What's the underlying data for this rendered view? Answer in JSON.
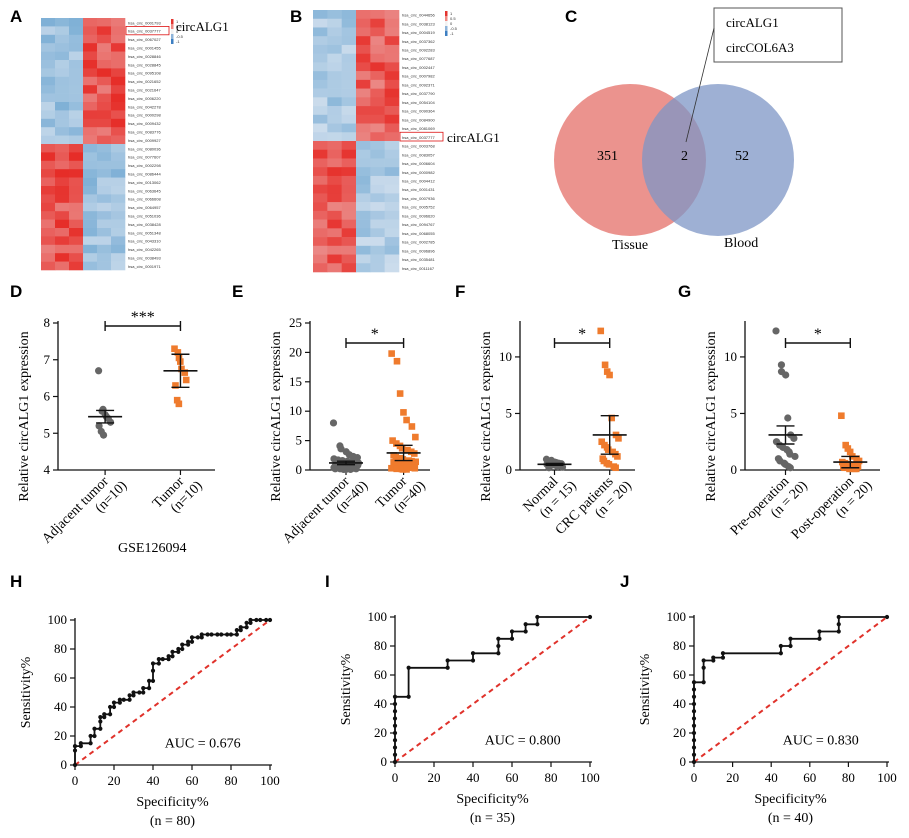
{
  "panel_letters": [
    "A",
    "B",
    "C",
    "D",
    "E",
    "F",
    "G",
    "H",
    "I",
    "J"
  ],
  "heatmap_A": {
    "rows": [
      "hsa_circ_0001793",
      "hsa_circ_0037777",
      "hsa_circ_0067027",
      "hsa_circ_0001455",
      "hsa_circ_0028846",
      "hsa_circ_0028845",
      "hsa_circ_0095108",
      "hsa_circ_0021652",
      "hsa_circ_0021647",
      "hsa_circ_0006220",
      "hsa_circ_0042278",
      "hsa_circ_0000298",
      "hsa_circ_0009432",
      "hsa_circ_0083776",
      "hsa_circ_0009927",
      "hsa_circ_0080036",
      "hsa_circ_0077607",
      "hsa_circ_0002298",
      "hsa_circ_0086444",
      "hsa_circ_0013062",
      "hsa_circ_0063645",
      "hsa_circ_0066608",
      "hsa_circ_0064957",
      "hsa_circ_0051036",
      "hsa_circ_0038428",
      "hsa_circ_0051348",
      "hsa_circ_0043310",
      "hsa_circ_0042265",
      "hsa_circ_0038493",
      "hsa_circ_0001971"
    ],
    "legend": [
      "1",
      "0.5",
      "0",
      "-0.5",
      "-1"
    ],
    "highlight": "circALG1",
    "highlight_row": 1
  },
  "heatmap_B": {
    "rows": [
      "hsa_circ_0044656",
      "hsa_circ_0038123",
      "hsa_circ_0004519",
      "hsa_circ_0037362",
      "hsa_circ_0092283",
      "hsa_circ_0077687",
      "hsa_circ_0002447",
      "hsa_circ_0007982",
      "hsa_circ_0092371",
      "hsa_circ_0037790",
      "hsa_circ_0054104",
      "hsa_circ_0090364",
      "hsa_circ_0084900",
      "hsa_circ_0081069",
      "hsa_circ_0037777",
      "hsa_circ_0003768",
      "hsa_circ_0083057",
      "hsa_circ_0006604",
      "hsa_circ_0000982",
      "hsa_circ_0004412",
      "hsa_circ_0001431",
      "hsa_circ_0007936",
      "hsa_circ_0005752",
      "hsa_circ_0096620",
      "hsa_circ_0094767",
      "hsa_circ_0068055",
      "hsa_circ_0002785",
      "hsa_circ_0096896",
      "hsa_circ_0035481",
      "hsa_circ_0011167"
    ],
    "legend": [
      "1",
      "0.5",
      "0",
      "-0.5",
      "-1"
    ],
    "highlight": "circALG1",
    "highlight_row": 14
  },
  "venn": {
    "left_label": "Tissue",
    "right_label": "Blood",
    "left_only": "351",
    "overlap": "2",
    "right_only": "52",
    "callout": [
      "circALG1",
      "circCOL6A3"
    ]
  },
  "chart_data": [
    {
      "panel": "D",
      "type": "scatter",
      "ylabel": "Relative circALG1 expression",
      "categories": [
        "Adjacent tumor\n(n=10)",
        "Tumor\n(n=10)"
      ],
      "ylim": [
        4,
        8
      ],
      "yticks": [
        4,
        5,
        6,
        7,
        8
      ],
      "dataset": "GSE126094",
      "series": [
        {
          "values": [
            6.7,
            5.65,
            5.6,
            5.5,
            5.45,
            5.4,
            5.3,
            5.2,
            5.05,
            4.95
          ],
          "mean": 5.45,
          "sem": 0.17,
          "color": "#666666",
          "marker": "circle"
        },
        {
          "values": [
            7.3,
            7.2,
            7.05,
            6.95,
            6.75,
            6.65,
            6.45,
            6.3,
            5.9,
            5.8
          ],
          "mean": 6.7,
          "sem": 0.45,
          "color": "#ef7b2d",
          "marker": "square"
        }
      ],
      "significance": "***"
    },
    {
      "panel": "E",
      "type": "scatter",
      "ylabel": "Relative circALG1 expression",
      "categories": [
        "Adjacent tumor\n(n=40)",
        "Tumor\n(n=40)"
      ],
      "ylim": [
        0,
        25
      ],
      "yticks": [
        0,
        5,
        10,
        15,
        20,
        25
      ],
      "series": [
        {
          "values": [
            8.0,
            4.1,
            3.6,
            3.1,
            2.6,
            2.3,
            2.1,
            1.9,
            1.7,
            1.6,
            1.5,
            1.4,
            1.3,
            1.2,
            1.1,
            1.0,
            1.0,
            0.9,
            0.9,
            0.8,
            0.8,
            0.7,
            0.7,
            0.6,
            0.6,
            0.5,
            0.5,
            0.5,
            0.4,
            0.4,
            0.4,
            0.3,
            0.3,
            0.3,
            0.2,
            0.2,
            0.2,
            0.1,
            0.1,
            0.1
          ],
          "mean": 1.2,
          "sem": 0.3,
          "color": "#666666",
          "marker": "circle"
        },
        {
          "values": [
            19.8,
            18.5,
            13.0,
            9.8,
            8.5,
            7.4,
            5.6,
            5.0,
            4.5,
            4.1,
            3.7,
            3.4,
            3.1,
            2.8,
            2.5,
            2.2,
            2.0,
            1.8,
            1.6,
            1.5,
            1.4,
            1.3,
            1.2,
            1.1,
            1.0,
            0.9,
            0.8,
            0.7,
            0.6,
            0.6,
            0.5,
            0.5,
            0.4,
            0.4,
            0.3,
            0.3,
            0.2,
            0.2,
            0.1,
            0.1
          ],
          "mean": 2.9,
          "sem": 1.3,
          "color": "#ef7b2d",
          "marker": "square"
        }
      ],
      "significance": "*"
    },
    {
      "panel": "F",
      "type": "scatter",
      "ylabel": "Relative circALG1 expression",
      "categories": [
        "Normal\n(n = 15)",
        "CRC patients\n(n = 20)"
      ],
      "ylim": [
        0,
        13
      ],
      "yticks": [
        0,
        5,
        10
      ],
      "series": [
        {
          "values": [
            0.95,
            0.85,
            0.8,
            0.7,
            0.65,
            0.6,
            0.55,
            0.5,
            0.5,
            0.45,
            0.4,
            0.35,
            0.3,
            0.25,
            0.2
          ],
          "mean": 0.5,
          "sem": 0.08,
          "color": "#666666",
          "marker": "circle"
        },
        {
          "values": [
            12.3,
            9.3,
            8.7,
            8.4,
            4.6,
            3.1,
            2.8,
            2.5,
            2.2,
            2.0,
            1.8,
            1.6,
            1.4,
            1.2,
            1.0,
            0.8,
            0.6,
            0.5,
            0.3,
            0.2
          ],
          "mean": 3.1,
          "sem": 1.7,
          "color": "#ef7b2d",
          "marker": "square"
        }
      ],
      "significance": "*"
    },
    {
      "panel": "G",
      "type": "scatter",
      "ylabel": "Relative circALG1 expression",
      "categories": [
        "Pre-operation\n(n = 20)",
        "Post-operation\n(n = 20)"
      ],
      "ylim": [
        0,
        13
      ],
      "yticks": [
        0,
        5,
        10
      ],
      "series": [
        {
          "values": [
            12.3,
            9.3,
            8.7,
            8.4,
            4.6,
            3.1,
            2.8,
            2.5,
            2.2,
            2.0,
            1.8,
            1.6,
            1.4,
            1.2,
            1.0,
            0.8,
            0.6,
            0.5,
            0.3,
            0.2
          ],
          "mean": 3.1,
          "sem": 0.8,
          "color": "#666666",
          "marker": "circle"
        },
        {
          "values": [
            4.8,
            2.2,
            1.9,
            1.6,
            1.2,
            1.0,
            0.8,
            0.7,
            0.6,
            0.5,
            0.5,
            0.4,
            0.4,
            0.3,
            0.3,
            0.2,
            0.2,
            0.1,
            0.1,
            0.1
          ],
          "mean": 0.7,
          "sem": 0.5,
          "color": "#ef7b2d",
          "marker": "square"
        }
      ],
      "significance": "*"
    },
    {
      "panel": "H",
      "type": "line",
      "xlabel": "Specificity%",
      "xlabel_sub": "(n = 80)",
      "ylabel": "Sensitivity%",
      "xlim": [
        0,
        100
      ],
      "ylim": [
        0,
        100
      ],
      "ticks": [
        0,
        20,
        40,
        60,
        80,
        100
      ],
      "auc": "AUC = 0.676",
      "roc": [
        [
          0,
          0
        ],
        [
          0,
          10
        ],
        [
          0,
          13
        ],
        [
          3,
          13
        ],
        [
          3,
          15
        ],
        [
          8,
          15
        ],
        [
          8,
          20
        ],
        [
          10,
          20
        ],
        [
          10,
          25
        ],
        [
          13,
          25
        ],
        [
          13,
          30
        ],
        [
          13,
          33
        ],
        [
          15,
          33
        ],
        [
          15,
          35
        ],
        [
          18,
          35
        ],
        [
          18,
          40
        ],
        [
          20,
          40
        ],
        [
          20,
          43
        ],
        [
          23,
          43
        ],
        [
          23,
          45
        ],
        [
          25,
          45
        ],
        [
          28,
          45
        ],
        [
          28,
          48
        ],
        [
          30,
          48
        ],
        [
          30,
          50
        ],
        [
          33,
          50
        ],
        [
          35,
          50
        ],
        [
          35,
          53
        ],
        [
          38,
          53
        ],
        [
          38,
          58
        ],
        [
          40,
          58
        ],
        [
          40,
          65
        ],
        [
          40,
          70
        ],
        [
          43,
          70
        ],
        [
          43,
          73
        ],
        [
          45,
          73
        ],
        [
          48,
          73
        ],
        [
          48,
          75
        ],
        [
          50,
          75
        ],
        [
          50,
          78
        ],
        [
          53,
          78
        ],
        [
          53,
          80
        ],
        [
          55,
          80
        ],
        [
          55,
          83
        ],
        [
          58,
          83
        ],
        [
          58,
          85
        ],
        [
          60,
          85
        ],
        [
          60,
          88
        ],
        [
          63,
          88
        ],
        [
          65,
          88
        ],
        [
          65,
          90
        ],
        [
          68,
          90
        ],
        [
          70,
          90
        ],
        [
          73,
          90
        ],
        [
          75,
          90
        ],
        [
          78,
          90
        ],
        [
          80,
          90
        ],
        [
          83,
          90
        ],
        [
          83,
          93
        ],
        [
          85,
          93
        ],
        [
          85,
          95
        ],
        [
          88,
          95
        ],
        [
          88,
          98
        ],
        [
          90,
          98
        ],
        [
          90,
          100
        ],
        [
          93,
          100
        ],
        [
          95,
          100
        ],
        [
          98,
          100
        ],
        [
          100,
          100
        ]
      ],
      "diagonal": [
        [
          0,
          0
        ],
        [
          100,
          100
        ]
      ]
    },
    {
      "panel": "I",
      "type": "line",
      "xlabel": "Specificity%",
      "xlabel_sub": "(n = 35)",
      "ylabel": "Sensitivity%",
      "xlim": [
        0,
        100
      ],
      "ylim": [
        0,
        100
      ],
      "ticks": [
        0,
        20,
        40,
        60,
        80,
        100
      ],
      "auc": "AUC = 0.800",
      "roc": [
        [
          0,
          0
        ],
        [
          0,
          5
        ],
        [
          0,
          10
        ],
        [
          0,
          15
        ],
        [
          0,
          20
        ],
        [
          0,
          25
        ],
        [
          0,
          30
        ],
        [
          0,
          35
        ],
        [
          0,
          40
        ],
        [
          0,
          45
        ],
        [
          7,
          45
        ],
        [
          7,
          65
        ],
        [
          27,
          65
        ],
        [
          27,
          70
        ],
        [
          40,
          70
        ],
        [
          40,
          75
        ],
        [
          53,
          75
        ],
        [
          53,
          80
        ],
        [
          53,
          85
        ],
        [
          60,
          85
        ],
        [
          60,
          90
        ],
        [
          67,
          90
        ],
        [
          67,
          95
        ],
        [
          73,
          95
        ],
        [
          73,
          100
        ],
        [
          100,
          100
        ]
      ],
      "diagonal": [
        [
          0,
          0
        ],
        [
          100,
          100
        ]
      ]
    },
    {
      "panel": "J",
      "type": "line",
      "xlabel": "Specificity%",
      "xlabel_sub": "(n = 40)",
      "ylabel": "Sensitivity%",
      "xlim": [
        0,
        100
      ],
      "ylim": [
        0,
        100
      ],
      "ticks": [
        0,
        20,
        40,
        60,
        80,
        100
      ],
      "auc": "AUC = 0.830",
      "roc": [
        [
          0,
          0
        ],
        [
          0,
          5
        ],
        [
          0,
          10
        ],
        [
          0,
          15
        ],
        [
          0,
          20
        ],
        [
          0,
          25
        ],
        [
          0,
          30
        ],
        [
          0,
          35
        ],
        [
          0,
          40
        ],
        [
          0,
          45
        ],
        [
          0,
          50
        ],
        [
          0,
          55
        ],
        [
          5,
          55
        ],
        [
          5,
          65
        ],
        [
          5,
          70
        ],
        [
          10,
          70
        ],
        [
          10,
          72
        ],
        [
          15,
          72
        ],
        [
          15,
          75
        ],
        [
          45,
          75
        ],
        [
          45,
          80
        ],
        [
          50,
          80
        ],
        [
          50,
          85
        ],
        [
          65,
          85
        ],
        [
          65,
          90
        ],
        [
          75,
          90
        ],
        [
          75,
          95
        ],
        [
          75,
          100
        ],
        [
          100,
          100
        ]
      ],
      "diagonal": [
        [
          0,
          0
        ],
        [
          100,
          100
        ]
      ]
    }
  ]
}
